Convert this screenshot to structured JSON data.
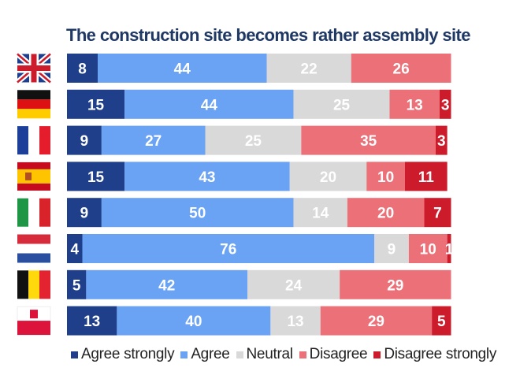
{
  "chart_data": {
    "type": "bar",
    "orientation": "horizontal",
    "stacked": true,
    "title": "The construction site becomes rather assembly site",
    "categories": [
      "UK",
      "Germany",
      "France",
      "Spain",
      "Italy",
      "Netherlands",
      "Belgium",
      "Poland"
    ],
    "flag_icons": [
      "uk-flag-icon",
      "germany-flag-icon",
      "france-flag-icon",
      "spain-flag-icon",
      "italy-flag-icon",
      "netherlands-flag-icon",
      "belgium-flag-icon",
      "poland-flag-icon"
    ],
    "series": [
      {
        "name": "Agree strongly",
        "color": "#1f3f8a",
        "values": [
          8,
          15,
          9,
          15,
          9,
          4,
          5,
          13
        ]
      },
      {
        "name": "Agree",
        "color": "#6aa2f4",
        "values": [
          44,
          44,
          27,
          43,
          50,
          76,
          42,
          40
        ]
      },
      {
        "name": "Neutral",
        "color": "#d9d9d9",
        "values": [
          22,
          25,
          25,
          20,
          14,
          9,
          24,
          13
        ]
      },
      {
        "name": "Disagree",
        "color": "#ec7078",
        "values": [
          26,
          13,
          35,
          10,
          20,
          10,
          29,
          29
        ]
      },
      {
        "name": "Disagree strongly",
        "color": "#cc1c2c",
        "values": [
          0,
          3,
          3,
          11,
          7,
          1,
          0,
          5
        ]
      }
    ],
    "xlim": [
      0,
      100
    ],
    "legend_position": "bottom"
  }
}
